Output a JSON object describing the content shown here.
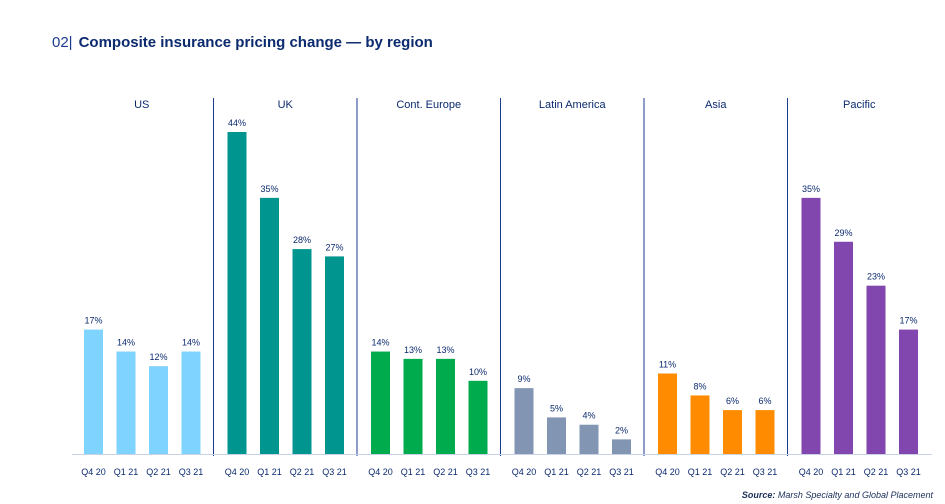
{
  "header": {
    "number": "02|",
    "title": "Composite insurance pricing change — by region"
  },
  "source": {
    "label": "Source:",
    "text": "Marsh Specialty and Global Placement"
  },
  "chart_data": {
    "type": "bar",
    "title": "Composite insurance pricing change — by region",
    "categories": [
      "Q4 20",
      "Q1 21",
      "Q2 21",
      "Q3 21"
    ],
    "ylim": [
      0,
      44
    ],
    "grid": false,
    "value_suffix": "%",
    "panels": [
      {
        "name": "US",
        "color": "#7fd3ff",
        "values": [
          17,
          14,
          12,
          14
        ]
      },
      {
        "name": "UK",
        "color": "#00968f",
        "values": [
          44,
          35,
          28,
          27
        ]
      },
      {
        "name": "Cont. Europe",
        "color": "#00ab4e",
        "values": [
          14,
          13,
          13,
          10
        ]
      },
      {
        "name": "Latin America",
        "color": "#8296b4",
        "values": [
          9,
          5,
          4,
          2
        ]
      },
      {
        "name": "Asia",
        "color": "#ff8c00",
        "values": [
          11,
          8,
          6,
          6
        ]
      },
      {
        "name": "Pacific",
        "color": "#8246af",
        "values": [
          35,
          29,
          23,
          17
        ]
      }
    ]
  }
}
